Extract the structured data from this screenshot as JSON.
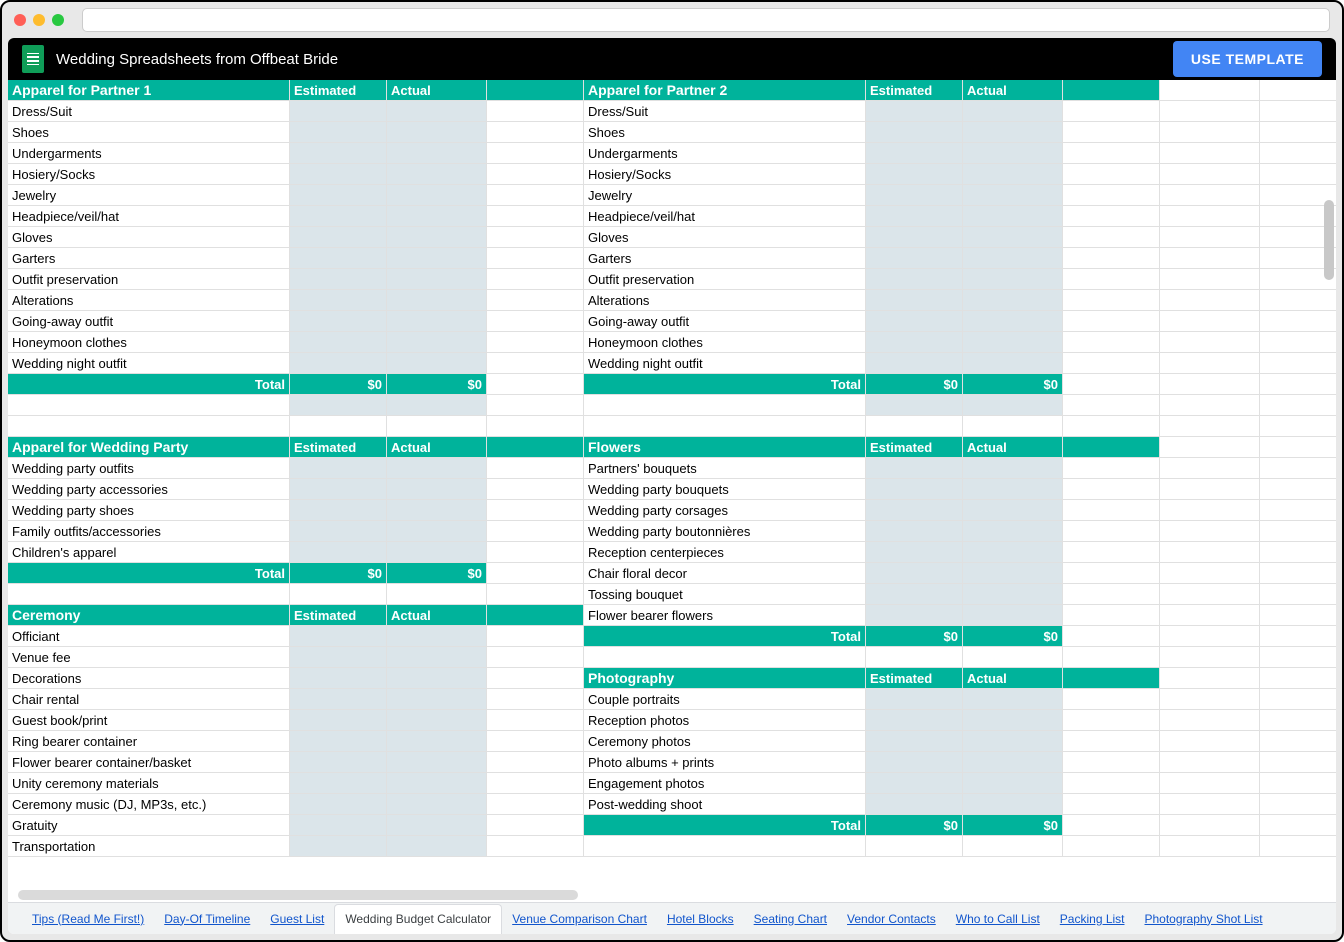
{
  "doc_title": "Wedding Spreadsheets from Offbeat Bride",
  "use_template": "USE TEMPLATE",
  "col_headers": {
    "estimated": "Estimated",
    "actual": "Actual"
  },
  "total_label": "Total",
  "zero": "$0",
  "colors": {
    "teal": "#00b39b",
    "shade": "#dbe5ea",
    "blue_btn": "#4285f4"
  },
  "sections": {
    "apparel_p1": {
      "title": "Apparel for Partner 1",
      "items": [
        "Dress/Suit",
        "Shoes",
        "Undergarments",
        "Hosiery/Socks",
        "Jewelry",
        "Headpiece/veil/hat",
        "Gloves",
        "Garters",
        "Outfit preservation",
        "Alterations",
        "Going-away outfit",
        "Honeymoon clothes",
        "Wedding night outfit"
      ],
      "est_total": "$0",
      "act_total": "$0"
    },
    "apparel_p2": {
      "title": "Apparel for Partner 2",
      "items": [
        "Dress/Suit",
        "Shoes",
        "Undergarments",
        "Hosiery/Socks",
        "Jewelry",
        "Headpiece/veil/hat",
        "Gloves",
        "Garters",
        "Outfit preservation",
        "Alterations",
        "Going-away outfit",
        "Honeymoon clothes",
        "Wedding night outfit"
      ],
      "est_total": "$0",
      "act_total": "$0"
    },
    "apparel_wp": {
      "title": "Apparel for Wedding Party",
      "items": [
        "Wedding party outfits",
        "Wedding party accessories",
        "Wedding party shoes",
        "Family outfits/accessories",
        "Children's apparel"
      ],
      "est_total": "$0",
      "act_total": "$0"
    },
    "flowers": {
      "title": "Flowers",
      "items": [
        "Partners' bouquets",
        "Wedding party bouquets",
        "Wedding party corsages",
        "Wedding party boutonnières",
        "Reception centerpieces",
        "Chair floral decor",
        "Tossing bouquet",
        "Flower bearer flowers"
      ],
      "est_total": "$0",
      "act_total": "$0"
    },
    "ceremony": {
      "title": "Ceremony",
      "items": [
        "Officiant",
        "Venue fee",
        "Decorations",
        "Chair rental",
        "Guest book/print",
        "Ring bearer container",
        "Flower bearer container/basket",
        "Unity ceremony materials",
        "Ceremony music (DJ, MP3s, etc.)",
        "Gratuity",
        "Transportation"
      ]
    },
    "photography": {
      "title": "Photography",
      "items": [
        "Couple portraits",
        "Reception photos",
        "Ceremony photos",
        "Photo albums + prints",
        "Engagement photos",
        "Post-wedding shoot"
      ],
      "est_total": "$0",
      "act_total": "$0"
    }
  },
  "tabs": [
    "Tips (Read Me First!)",
    "Day-Of Timeline",
    "Guest List",
    "Wedding Budget Calculator",
    "Venue Comparison Chart",
    "Hotel Blocks",
    "Seating Chart",
    "Vendor Contacts",
    "Who to Call List",
    "Packing List",
    "Photography Shot List"
  ],
  "active_tab_index": 3
}
